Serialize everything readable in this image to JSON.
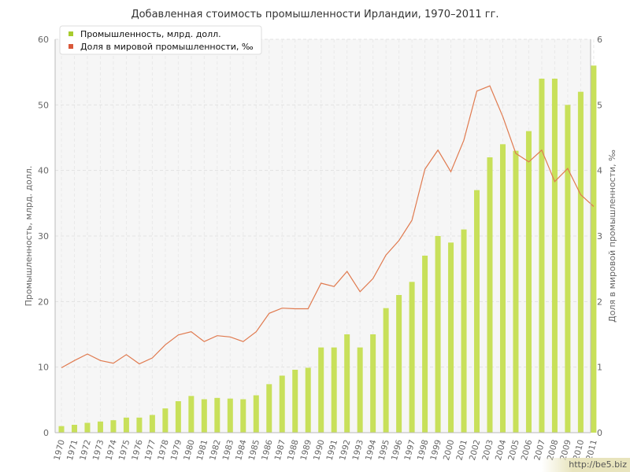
{
  "watermark": "http://be5.biz",
  "chart_data": {
    "type": "bar+line",
    "title": "Добавленная стоимость промышленности Ирландии, 1970–2011 гг.",
    "ylabel_left": "Промышленность, млрд. долл.",
    "ylabel_right": "Доля в мировой промышленности, ‰",
    "ylim_left": [
      0,
      60
    ],
    "ylim_right": [
      0,
      6
    ],
    "yticks_left": [
      0,
      10,
      20,
      30,
      40,
      50,
      60
    ],
    "yticks_right": [
      0,
      1,
      2,
      3,
      4,
      5,
      6
    ],
    "legend_position": "top-left",
    "grid": true,
    "categories": [
      "1970",
      "1971",
      "1972",
      "1973",
      "1974",
      "1975",
      "1976",
      "1977",
      "1978",
      "1979",
      "1980",
      "1981",
      "1982",
      "1983",
      "1984",
      "1985",
      "1986",
      "1987",
      "1988",
      "1989",
      "1990",
      "1991",
      "1992",
      "1993",
      "1994",
      "1995",
      "1996",
      "1997",
      "1998",
      "1999",
      "2000",
      "2001",
      "2002",
      "2003",
      "2004",
      "2005",
      "2006",
      "2007",
      "2008",
      "2009",
      "2010",
      "2011"
    ],
    "series": [
      {
        "name": "Промышленность, млрд. долл.",
        "type": "bar",
        "axis": "left",
        "color": "#c8e05a",
        "values": [
          1.0,
          1.2,
          1.5,
          1.7,
          1.9,
          2.3,
          2.3,
          2.7,
          3.7,
          4.8,
          5.6,
          5.1,
          5.3,
          5.2,
          5.1,
          5.7,
          7.4,
          8.7,
          9.6,
          9.9,
          13.0,
          13.0,
          15.0,
          13.0,
          15.0,
          19.0,
          21.0,
          23.0,
          27.0,
          30.0,
          29.0,
          31.0,
          37.0,
          42.0,
          44.0,
          43.0,
          46.0,
          54.0,
          54.0,
          50.0,
          52.0,
          56.0
        ]
      },
      {
        "name": "Доля в мировой промышленности, ‰",
        "type": "line",
        "axis": "right",
        "color": "#e07a4f",
        "values": [
          0.99,
          1.1,
          1.2,
          1.1,
          1.06,
          1.19,
          1.05,
          1.14,
          1.34,
          1.49,
          1.54,
          1.39,
          1.48,
          1.46,
          1.39,
          1.54,
          1.82,
          1.9,
          1.89,
          1.89,
          2.28,
          2.23,
          2.46,
          2.15,
          2.35,
          2.71,
          2.93,
          3.24,
          4.02,
          4.31,
          3.98,
          4.46,
          5.21,
          5.29,
          4.82,
          4.26,
          4.13,
          4.31,
          3.83,
          4.03,
          3.63,
          3.45
        ]
      }
    ]
  }
}
